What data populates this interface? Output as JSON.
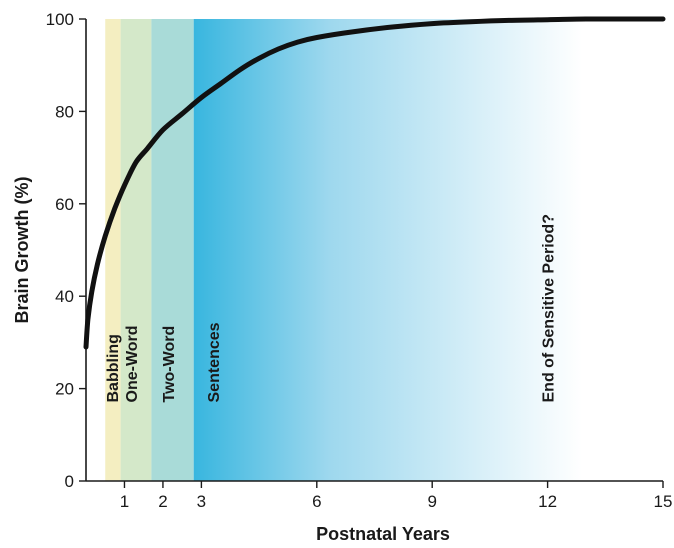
{
  "chart_data": {
    "type": "line",
    "title": "",
    "xlabel": "Postnatal Years",
    "ylabel": "Brain Growth (%)",
    "xlim": [
      0,
      15
    ],
    "ylim": [
      0,
      100
    ],
    "x_ticks": [
      1,
      2,
      3,
      6,
      9,
      12,
      15
    ],
    "y_ticks": [
      0,
      20,
      40,
      60,
      80,
      100
    ],
    "grid": false,
    "series": [
      {
        "name": "",
        "color": "#111111",
        "x": [
          0,
          0.05,
          0.15,
          0.3,
          0.5,
          0.75,
          1,
          1.3,
          1.6,
          2,
          2.5,
          3,
          3.5,
          4,
          4.5,
          5,
          5.5,
          6,
          7,
          8,
          9,
          10,
          11,
          12,
          13,
          14,
          15
        ],
        "y": [
          29,
          35,
          41,
          47,
          53,
          59,
          64,
          69,
          72,
          76,
          79.5,
          83,
          86,
          89,
          91.5,
          93.5,
          95,
          96,
          97.3,
          98.3,
          99,
          99.4,
          99.7,
          99.85,
          100,
          100,
          100
        ]
      }
    ],
    "bands": [
      {
        "label": "Babbling",
        "start": 0.5,
        "end": 0.9,
        "color": "#f4eec1"
      },
      {
        "label": "One-Word",
        "start": 0.9,
        "end": 1.7,
        "color": "#d4e8c9"
      },
      {
        "label": "Two-Word",
        "start": 1.7,
        "end": 2.8,
        "color": "#a9dbd8"
      },
      {
        "label": "Sentences",
        "start": 2.8,
        "end": 12.9,
        "color_start": "#38b6df",
        "color_end": "#ffffff"
      },
      {
        "label": "End of Sensitive Period?",
        "start": 12.5,
        "end": 12.5,
        "color": ""
      }
    ]
  }
}
